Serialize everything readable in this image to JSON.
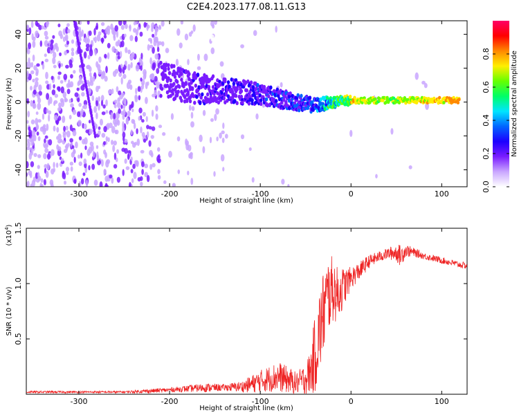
{
  "chart_data": [
    {
      "type": "heatmap",
      "title": "C2E4.2023.177.08.11.G13",
      "xlabel": "Height of straight line (km)",
      "ylabel": "Frequency (Hz)",
      "xlim": [
        -358,
        128
      ],
      "ylim": [
        -50,
        48
      ],
      "xticks": [
        -300,
        -200,
        -100,
        0,
        100
      ],
      "yticks": [
        -40,
        -20,
        0,
        20,
        40
      ],
      "xtick_labels": [
        "-300",
        "-200",
        "-100",
        "0",
        "100"
      ],
      "ytick_labels": [
        "-40",
        "-20",
        "0",
        "20",
        "40"
      ],
      "colorbar": {
        "label": "Normalized spectral amplitude",
        "ticks": [
          0.0,
          0.2,
          0.4,
          0.6,
          0.8
        ],
        "tick_labels": [
          "0.0",
          "0.2",
          "0.4",
          "0.6",
          "0.8"
        ],
        "range": [
          0,
          1
        ],
        "colormap": [
          "#ffffff",
          "#c9a6ff",
          "#7a1cff",
          "#1c00ff",
          "#0066ff",
          "#00e5ff",
          "#00ff66",
          "#66ff00",
          "#ffee00",
          "#ff8800",
          "#ff0000",
          "#ff0066"
        ]
      },
      "signal_band": {
        "description_points": [
          {
            "x": -210,
            "y": 14,
            "amplitude": 0.2
          },
          {
            "x": -180,
            "y": 9,
            "amplitude": 0.25
          },
          {
            "x": -150,
            "y": 7,
            "amplitude": 0.3
          },
          {
            "x": -120,
            "y": 6,
            "amplitude": 0.3
          },
          {
            "x": -100,
            "y": 5,
            "amplitude": 0.35
          },
          {
            "x": -80,
            "y": 2,
            "amplitude": 0.35
          },
          {
            "x": -60,
            "y": 0,
            "amplitude": 0.4
          },
          {
            "x": -40,
            "y": -2,
            "amplitude": 0.45
          },
          {
            "x": -20,
            "y": 0,
            "amplitude": 0.65
          },
          {
            "x": 0,
            "y": 1,
            "amplitude": 0.8
          },
          {
            "x": 40,
            "y": 1,
            "amplitude": 0.7
          },
          {
            "x": 80,
            "y": 1,
            "amplitude": 0.8
          },
          {
            "x": 120,
            "y": 1,
            "amplitude": 0.85
          }
        ],
        "streak": [
          {
            "x": -305,
            "y": 48
          },
          {
            "x": -282,
            "y": -20
          }
        ]
      }
    },
    {
      "type": "line",
      "xlabel": "Height of straight line (km)",
      "ylabel": "SNR (10 * v/v)",
      "multiplier_label": "(x10",
      "multiplier_exp": "4",
      "multiplier_close": ")",
      "xlim": [
        -358,
        128
      ],
      "ylim": [
        0.0,
        1.5
      ],
      "xticks": [
        -300,
        -200,
        -100,
        0,
        100
      ],
      "yticks": [
        0.5,
        1.0,
        1.5
      ],
      "xtick_labels": [
        "-300",
        "-200",
        "-100",
        "0",
        "100"
      ],
      "ytick_labels": [
        "0.5",
        "1.0",
        "1.5"
      ],
      "series": [
        {
          "color": "#ee2222",
          "x": [
            -358,
            -300,
            -250,
            -220,
            -200,
            -180,
            -160,
            -140,
            -120,
            -110,
            -100,
            -90,
            -80,
            -70,
            -60,
            -50,
            -45,
            -40,
            -35,
            -30,
            -25,
            -20,
            -15,
            -10,
            -5,
            0,
            10,
            20,
            30,
            40,
            50,
            55,
            60,
            70,
            80,
            90,
            100,
            110,
            120,
            128
          ],
          "y": [
            0.02,
            0.02,
            0.02,
            0.03,
            0.04,
            0.05,
            0.06,
            0.06,
            0.07,
            0.09,
            0.12,
            0.14,
            0.16,
            0.13,
            0.1,
            0.14,
            0.2,
            0.35,
            0.55,
            0.75,
            0.9,
            0.95,
            0.9,
            0.95,
            1.0,
            1.05,
            1.12,
            1.2,
            1.24,
            1.27,
            1.28,
            1.25,
            1.3,
            1.28,
            1.25,
            1.23,
            1.21,
            1.19,
            1.17,
            1.16
          ],
          "noise": [
            0.01,
            0.01,
            0.01,
            0.02,
            0.02,
            0.03,
            0.04,
            0.03,
            0.05,
            0.08,
            0.1,
            0.12,
            0.14,
            0.12,
            0.1,
            0.14,
            0.2,
            0.35,
            0.4,
            0.4,
            0.35,
            0.3,
            0.25,
            0.2,
            0.15,
            0.1,
            0.08,
            0.06,
            0.05,
            0.05,
            0.08,
            0.1,
            0.06,
            0.04,
            0.03,
            0.03,
            0.03,
            0.03,
            0.03,
            0.03
          ]
        }
      ]
    }
  ]
}
